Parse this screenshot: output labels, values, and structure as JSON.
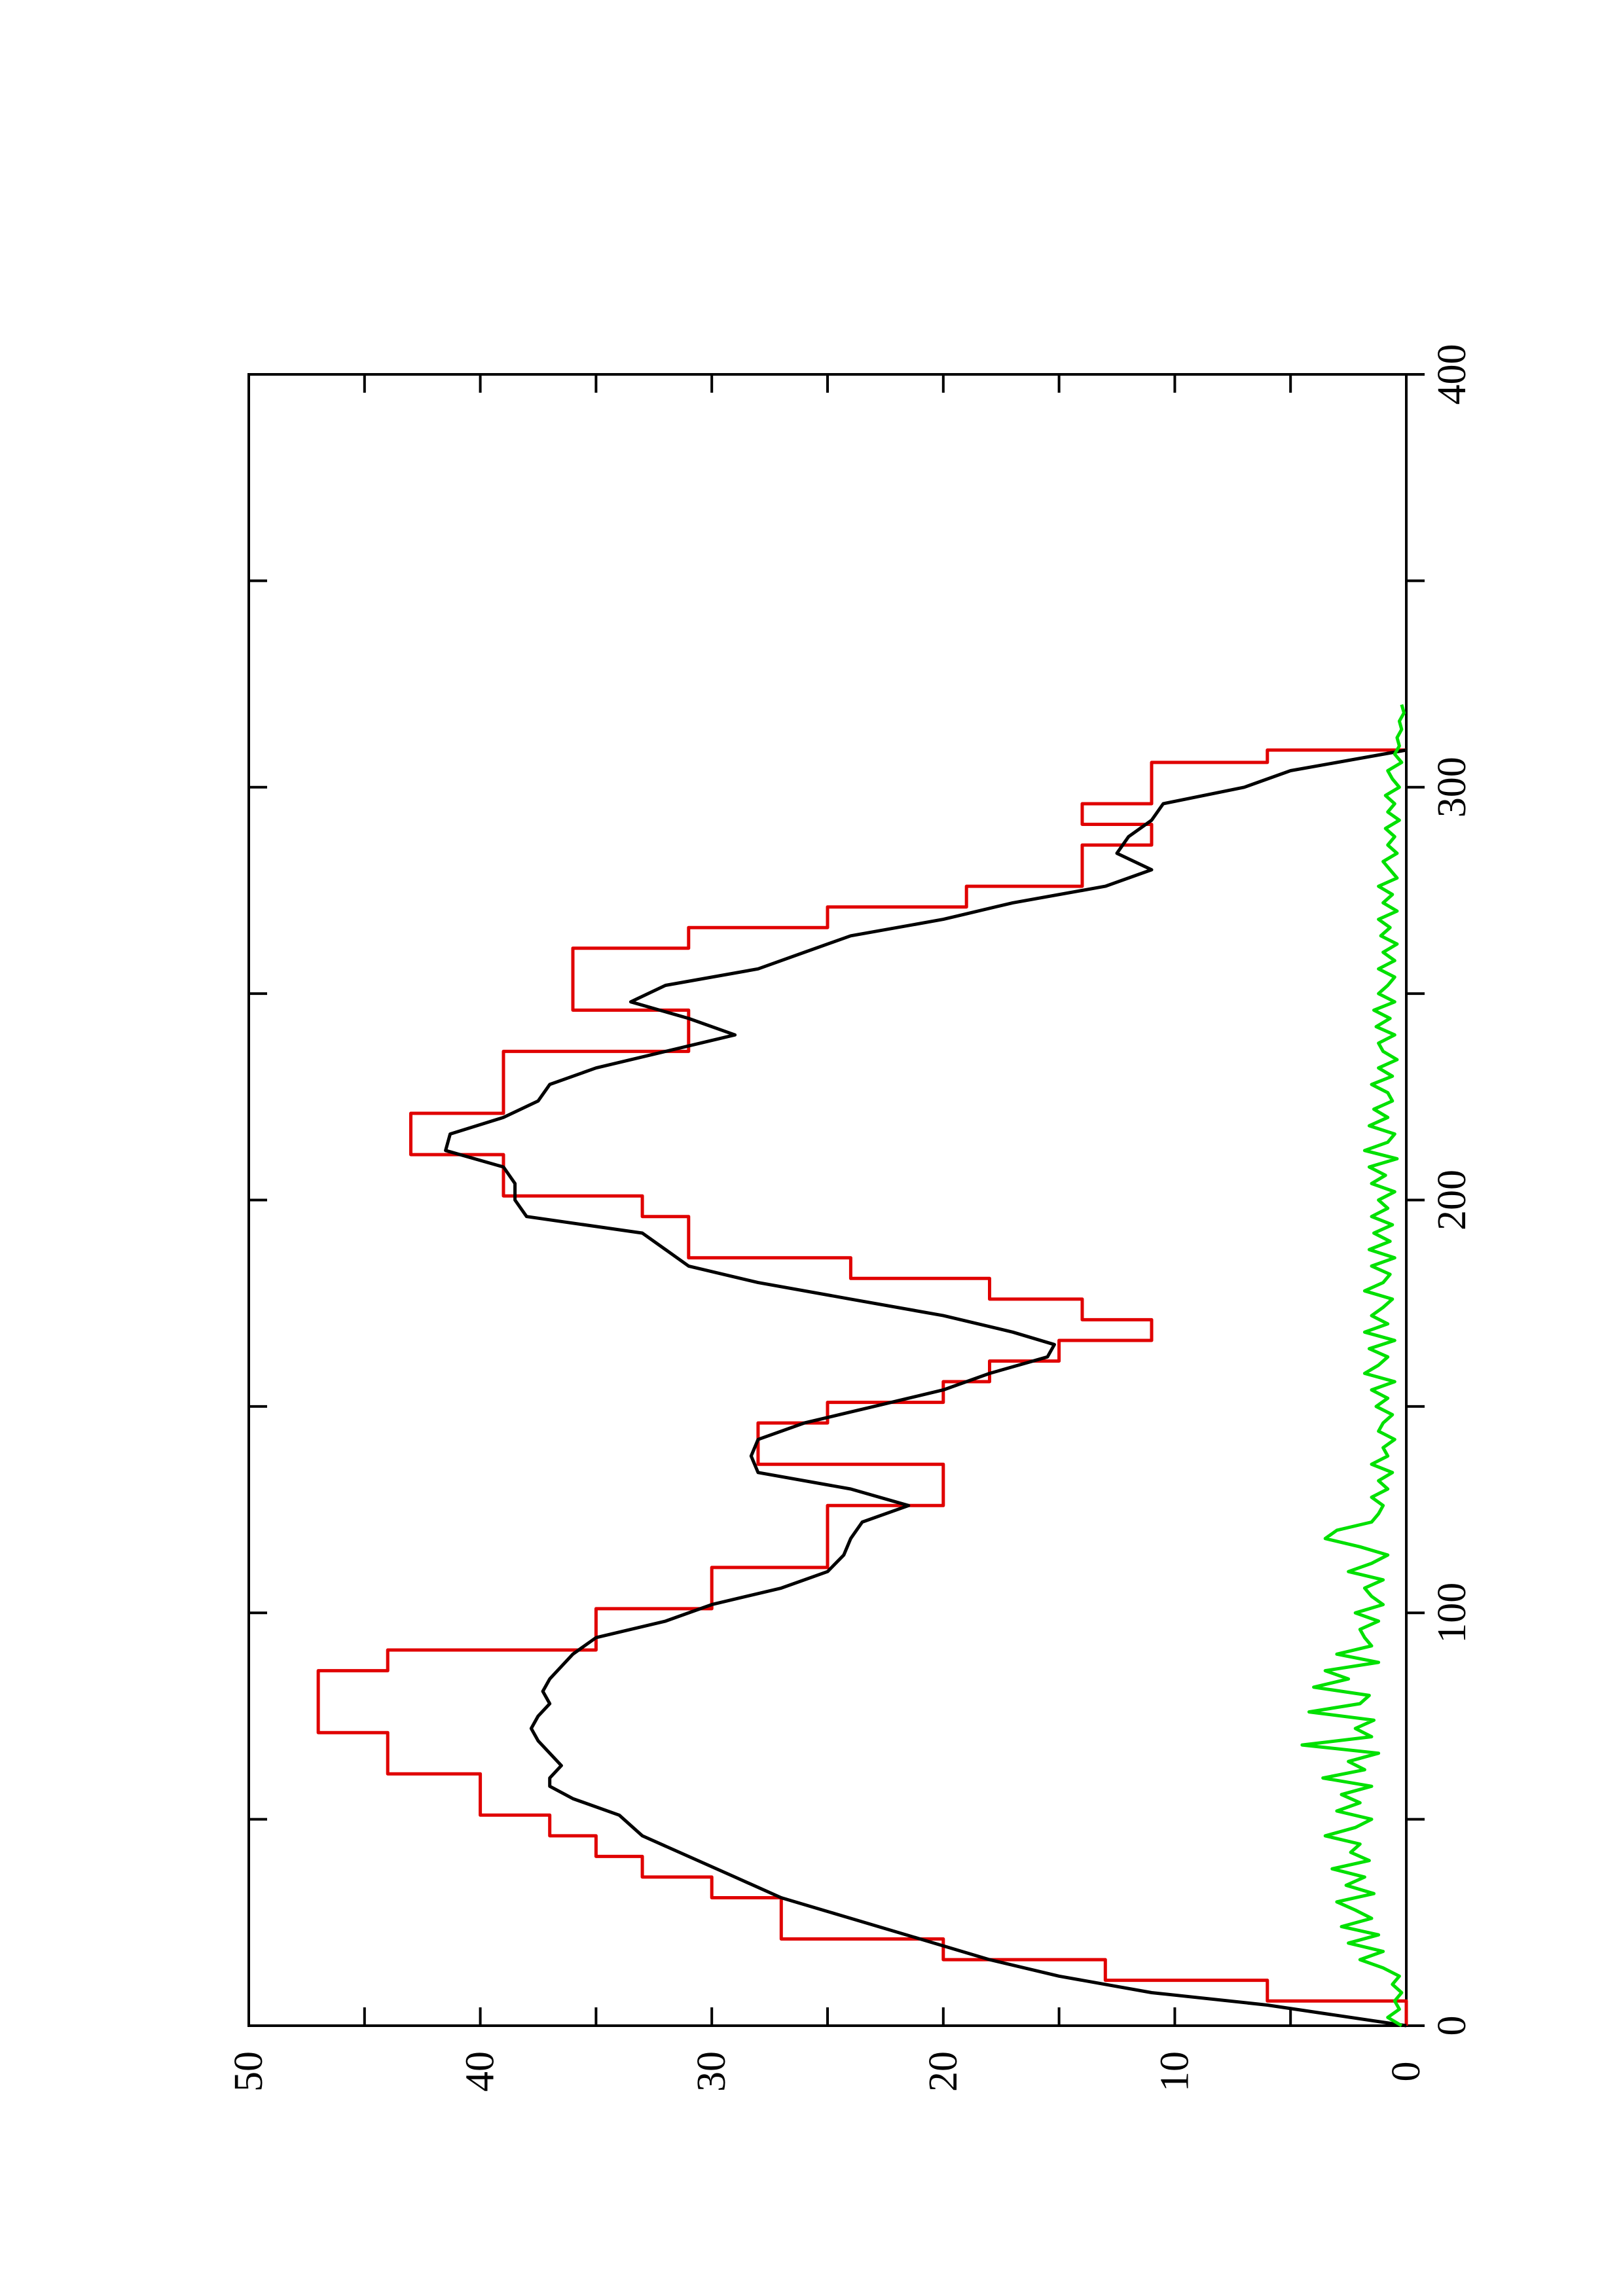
{
  "chart_data": {
    "type": "line",
    "orientation": "rotated-90-ccw",
    "title": "",
    "xlabel": "",
    "ylabel": "",
    "xlim": [
      0,
      400
    ],
    "ylim": [
      0,
      50
    ],
    "x_ticks": [
      "0",
      "100",
      "200",
      "300",
      "400"
    ],
    "y_ticks": [
      "0",
      "10",
      "20",
      "30",
      "40",
      "50"
    ],
    "grid": false,
    "legend": false,
    "series": [
      {
        "color": "#e00000",
        "step": true,
        "x": [
          0,
          6,
          11,
          16,
          21,
          31,
          36,
          41,
          46,
          51,
          56,
          61,
          66,
          71,
          76,
          81,
          86,
          91,
          96,
          101,
          106,
          111,
          116,
          121,
          126,
          131,
          136,
          141,
          146,
          151,
          156,
          161,
          166,
          171,
          176,
          181,
          186,
          191,
          196,
          201,
          206,
          211,
          216,
          221,
          226,
          231,
          236,
          241,
          246,
          251,
          256,
          261,
          266,
          271,
          276,
          281,
          286,
          291,
          296,
          301,
          306,
          309
        ],
        "y": [
          0,
          6,
          13,
          20,
          27,
          30,
          33,
          35,
          37,
          40,
          40,
          44,
          44,
          47,
          47,
          47,
          44,
          35,
          35,
          30,
          30,
          25,
          25,
          25,
          20,
          20,
          28,
          28,
          25,
          20,
          18,
          15,
          11,
          14,
          18,
          24,
          31,
          31,
          33,
          39,
          39,
          43,
          43,
          39,
          39,
          39,
          31,
          31,
          36,
          36,
          36,
          31,
          25,
          19,
          14,
          14,
          11,
          14,
          11,
          11,
          6,
          0
        ]
      },
      {
        "color": "#000000",
        "step": false,
        "x": [
          0,
          5,
          8,
          12,
          16,
          21,
          26,
          31,
          36,
          41,
          46,
          51,
          55,
          58,
          60,
          63,
          66,
          69,
          72,
          75,
          78,
          81,
          84,
          87,
          90,
          94,
          98,
          102,
          106,
          110,
          114,
          118,
          122,
          126,
          130,
          134,
          138,
          142,
          146,
          150,
          154,
          158,
          162,
          165,
          168,
          172,
          176,
          180,
          184,
          188,
          192,
          196,
          200,
          204,
          208,
          212,
          216,
          220,
          224,
          228,
          232,
          236,
          240,
          244,
          248,
          252,
          256,
          260,
          264,
          268,
          272,
          276,
          280,
          284,
          288,
          292,
          296,
          300,
          304,
          309
        ],
        "y": [
          0,
          6,
          11,
          15,
          18,
          21,
          24,
          27,
          29,
          31,
          33,
          34,
          36,
          37,
          37,
          36.5,
          37,
          37.5,
          37.8,
          37.5,
          37,
          37.3,
          37,
          36.5,
          36,
          35,
          32,
          30,
          27,
          25,
          24.3,
          24,
          23.5,
          21.5,
          24,
          28,
          28.3,
          28,
          26,
          23,
          20,
          18,
          15.5,
          15.2,
          17,
          20,
          24,
          28,
          31,
          32,
          33,
          38,
          38.5,
          38.5,
          39,
          41.5,
          41.3,
          39,
          37.5,
          37,
          35,
          32,
          29,
          31,
          33.5,
          32,
          28,
          26,
          24,
          20,
          17,
          13,
          11,
          12.5,
          12,
          11,
          10.5,
          7,
          5,
          0
        ]
      },
      {
        "color": "#00e000",
        "step": false,
        "x": [
          0,
          2,
          4,
          6,
          8,
          10,
          12,
          14,
          16,
          18,
          20,
          22,
          24,
          26,
          28,
          30,
          32,
          34,
          36,
          38,
          40,
          42,
          44,
          46,
          48,
          50,
          52,
          54,
          56,
          58,
          60,
          62,
          64,
          66,
          68,
          70,
          72,
          74,
          76,
          78,
          80,
          82,
          84,
          86,
          88,
          90,
          92,
          94,
          96,
          98,
          100,
          102,
          104,
          106,
          108,
          110,
          112,
          114,
          116,
          118,
          120,
          122,
          124,
          126,
          128,
          130,
          132,
          134,
          136,
          138,
          140,
          142,
          144,
          146,
          148,
          150,
          152,
          154,
          156,
          158,
          160,
          162,
          164,
          166,
          168,
          170,
          172,
          174,
          176,
          178,
          180,
          182,
          184,
          186,
          188,
          190,
          192,
          194,
          196,
          198,
          200,
          202,
          204,
          206,
          208,
          210,
          212,
          214,
          216,
          218,
          220,
          222,
          224,
          226,
          228,
          230,
          232,
          234,
          236,
          238,
          240,
          242,
          244,
          246,
          248,
          250,
          252,
          254,
          256,
          258,
          260,
          262,
          264,
          266,
          268,
          270,
          272,
          274,
          276,
          278,
          280,
          282,
          284,
          286,
          288,
          290,
          292,
          294,
          296,
          298,
          300,
          302,
          304,
          306,
          308,
          310,
          312,
          314,
          316,
          318,
          320
        ],
        "y": [
          0.2,
          0.8,
          0.3,
          0.5,
          0.2,
          0.6,
          0.3,
          1.0,
          2.0,
          1.0,
          2.5,
          1.2,
          2.8,
          1.5,
          2.2,
          3.0,
          1.4,
          2.6,
          1.8,
          3.2,
          1.6,
          2.4,
          2.0,
          3.5,
          2.2,
          1.5,
          3.0,
          2.0,
          2.8,
          1.5,
          3.6,
          1.8,
          2.5,
          1.2,
          4.5,
          1.5,
          2.2,
          1.4,
          4.2,
          2.0,
          1.6,
          4.0,
          2.5,
          3.5,
          1.2,
          3.0,
          1.5,
          1.8,
          2.0,
          1.2,
          2.2,
          1.0,
          1.5,
          1.8,
          1.0,
          2.5,
          1.5,
          0.8,
          2.0,
          3.5,
          3.0,
          1.5,
          1.2,
          1.0,
          1.5,
          0.8,
          1.2,
          0.6,
          1.5,
          0.8,
          1.0,
          0.5,
          1.2,
          1.0,
          0.6,
          1.3,
          0.8,
          1.5,
          0.5,
          1.8,
          1.2,
          0.8,
          1.6,
          0.5,
          1.8,
          0.8,
          1.5,
          1.0,
          0.6,
          1.8,
          1.0,
          0.7,
          1.5,
          0.5,
          1.6,
          0.7,
          1.4,
          0.6,
          1.5,
          0.8,
          1.2,
          0.5,
          1.5,
          0.9,
          1.6,
          0.4,
          1.8,
          0.8,
          0.5,
          1.6,
          0.8,
          1.4,
          0.6,
          0.8,
          1.5,
          0.6,
          1.2,
          0.4,
          1.0,
          1.2,
          0.5,
          1.3,
          0.7,
          1.4,
          0.5,
          1.2,
          0.8,
          0.5,
          1.2,
          0.5,
          1.0,
          0.4,
          1.1,
          0.7,
          1.2,
          0.4,
          1.0,
          0.6,
          1.2,
          0.4,
          0.7,
          1.0,
          0.4,
          0.8,
          0.5,
          0.9,
          0.3,
          0.8,
          0.5,
          0.9,
          0.3,
          0.6,
          0.8,
          0.2,
          0.5,
          0.3,
          0.4,
          0.2,
          0.3,
          0.1,
          0.2
        ]
      }
    ]
  }
}
